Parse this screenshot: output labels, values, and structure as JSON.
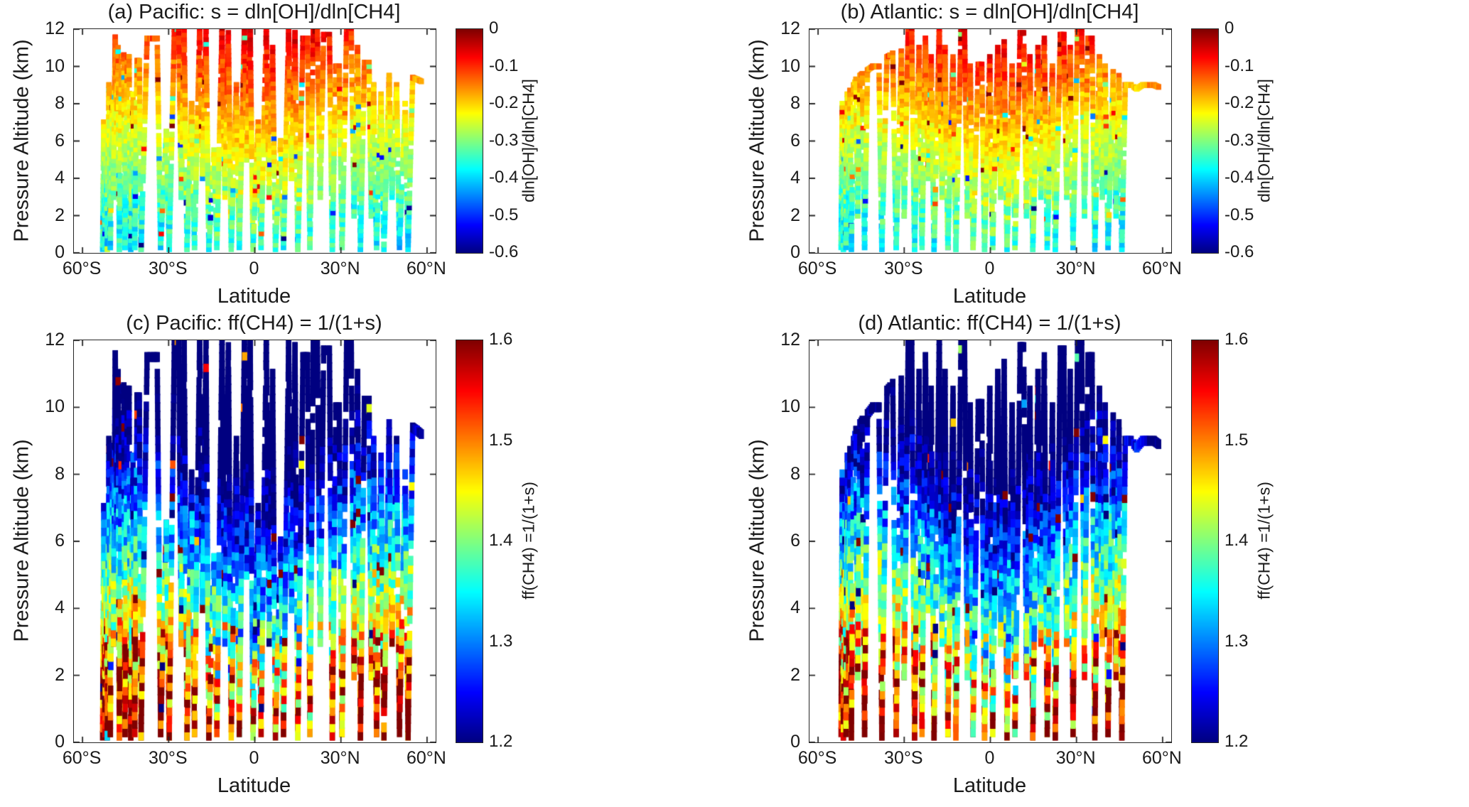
{
  "figure": {
    "background": "#ffffff",
    "text_color": "#1a1a1a",
    "axes_color": "#262626"
  },
  "chart_data": {
    "type": "heatmap",
    "panels": [
      {
        "id": "a",
        "title": "(a) Pacific:  s = dln[OH]/dln[CH4]",
        "xlabel": "Latitude",
        "ylabel": "Pressure Altitude (km)",
        "ocean": "pacific",
        "quantity": "s",
        "xlim": [
          -63,
          63
        ],
        "ylim": [
          0,
          12
        ],
        "xticks": [
          -60,
          -30,
          0,
          30,
          60
        ],
        "xtick_labels": [
          "60°S",
          "30°S",
          "0",
          "30°N",
          "60°N"
        ],
        "yticks": [
          0,
          2,
          4,
          6,
          8,
          10,
          12
        ],
        "ytick_labels": [
          "0",
          "2",
          "4",
          "6",
          "8",
          "10",
          "12"
        ],
        "colorbar": {
          "label": "dln[OH]/dln[CH4]",
          "min": -0.6,
          "max": 0,
          "colormap": "jet",
          "ticks": [
            0,
            -0.1,
            -0.2,
            -0.3,
            -0.4,
            -0.5,
            -0.6
          ],
          "tick_labels": [
            "0",
            "-0.1",
            "-0.2",
            "-0.3",
            "-0.4",
            "-0.5",
            "-0.6"
          ]
        }
      },
      {
        "id": "b",
        "title": "(b) Atlantic: s = dln[OH]/dln[CH4]",
        "xlabel": "Latitude",
        "ylabel": "Pressure Altitude (km)",
        "ocean": "atlantic",
        "quantity": "s",
        "xlim": [
          -63,
          63
        ],
        "ylim": [
          0,
          12
        ],
        "xticks": [
          -60,
          -30,
          0,
          30,
          60
        ],
        "xtick_labels": [
          "60°S",
          "30°S",
          "0",
          "30°N",
          "60°N"
        ],
        "yticks": [
          0,
          2,
          4,
          6,
          8,
          10,
          12
        ],
        "ytick_labels": [
          "0",
          "2",
          "4",
          "6",
          "8",
          "10",
          "12"
        ],
        "colorbar": {
          "label": "dln[OH]/dln[CH4]",
          "min": -0.6,
          "max": 0,
          "colormap": "jet",
          "ticks": [
            0,
            -0.1,
            -0.2,
            -0.3,
            -0.4,
            -0.5,
            -0.6
          ],
          "tick_labels": [
            "0",
            "-0.1",
            "-0.2",
            "-0.3",
            "-0.4",
            "-0.5",
            "-0.6"
          ]
        }
      },
      {
        "id": "c",
        "title": "(c) Pacific:  ff(CH4) = 1/(1+s)",
        "xlabel": "Latitude",
        "ylabel": "Pressure Altitude (km)",
        "ocean": "pacific",
        "quantity": "ff",
        "xlim": [
          -63,
          63
        ],
        "ylim": [
          0,
          12
        ],
        "xticks": [
          -60,
          -30,
          0,
          30,
          60
        ],
        "xtick_labels": [
          "60°S",
          "30°S",
          "0",
          "30°N",
          "60°N"
        ],
        "yticks": [
          0,
          2,
          4,
          6,
          8,
          10,
          12
        ],
        "ytick_labels": [
          "0",
          "2",
          "4",
          "6",
          "8",
          "10",
          "12"
        ],
        "colorbar": {
          "label": "ff(CH4) =1/(1+s)",
          "min": 1.2,
          "max": 1.6,
          "colormap": "jet",
          "ticks": [
            1.6,
            1.5,
            1.4,
            1.3,
            1.2
          ],
          "tick_labels": [
            "1.6",
            "1.5",
            "1.4",
            "1.3",
            "1.2"
          ]
        }
      },
      {
        "id": "d",
        "title": "(d) Atlantic: ff(CH4) = 1/(1+s)",
        "xlabel": "Latitude",
        "ylabel": "Pressure Altitude (km)",
        "ocean": "atlantic",
        "quantity": "ff",
        "xlim": [
          -63,
          63
        ],
        "ylim": [
          0,
          12
        ],
        "xticks": [
          -60,
          -30,
          0,
          30,
          60
        ],
        "xtick_labels": [
          "60°S",
          "30°S",
          "0",
          "30°N",
          "60°N"
        ],
        "yticks": [
          0,
          2,
          4,
          6,
          8,
          10,
          12
        ],
        "ytick_labels": [
          "0",
          "2",
          "4",
          "6",
          "8",
          "10",
          "12"
        ],
        "colorbar": {
          "label": "ff(CH4) =1/(1+s)",
          "min": 1.2,
          "max": 1.6,
          "colormap": "jet",
          "ticks": [
            1.6,
            1.5,
            1.4,
            1.3,
            1.2
          ],
          "tick_labels": [
            "1.6",
            "1.5",
            "1.4",
            "1.3",
            "1.2"
          ]
        }
      }
    ],
    "tracks": {
      "pacific": [
        [
          -53,
          0.2
        ],
        [
          -52.6,
          7
        ],
        [
          -52.2,
          0.3
        ],
        [
          -51.8,
          5
        ],
        [
          -51.4,
          0.2
        ],
        [
          -50.8,
          9
        ],
        [
          -50.3,
          0.3
        ],
        [
          -49.6,
          8.8
        ],
        [
          -49.2,
          3
        ],
        [
          -48.6,
          11.8
        ],
        [
          -48.2,
          6
        ],
        [
          -47.6,
          11
        ],
        [
          -47.2,
          0.2
        ],
        [
          -46.4,
          10.5
        ],
        [
          -45.6,
          10.6
        ],
        [
          -45.2,
          0.3
        ],
        [
          -44.4,
          10.5
        ],
        [
          -43.8,
          10.5
        ],
        [
          -43.2,
          0.2
        ],
        [
          -42.4,
          8.5
        ],
        [
          -41.8,
          0.3
        ],
        [
          -41,
          10.3
        ],
        [
          -40.2,
          10.3
        ],
        [
          -39.6,
          0.2
        ],
        [
          -37.5,
          11.5
        ],
        [
          -34,
          11.5
        ],
        [
          -32.8,
          0.3
        ],
        [
          -30.8,
          6.5
        ],
        [
          -29.8,
          0.2
        ],
        [
          -28,
          12
        ],
        [
          -26.5,
          12
        ],
        [
          -25.6,
          3
        ],
        [
          -24.6,
          11.9
        ],
        [
          -23.6,
          0.2
        ],
        [
          -22,
          8
        ],
        [
          -21,
          0.3
        ],
        [
          -19.2,
          12
        ],
        [
          -18.2,
          4
        ],
        [
          -17,
          11.9
        ],
        [
          -16,
          0.2
        ],
        [
          -14.2,
          5.5
        ],
        [
          -13.2,
          0.3
        ],
        [
          -11.4,
          12
        ],
        [
          -10.4,
          3
        ],
        [
          -9.2,
          11.8
        ],
        [
          -8.2,
          0.2
        ],
        [
          -6.4,
          9
        ],
        [
          -5.4,
          0.3
        ],
        [
          -3.6,
          12
        ],
        [
          -2.8,
          5
        ],
        [
          -1.6,
          11.9
        ],
        [
          -0.6,
          0.2
        ],
        [
          1.2,
          7
        ],
        [
          2.2,
          0.3
        ],
        [
          4,
          12
        ],
        [
          5,
          3
        ],
        [
          6.2,
          11
        ],
        [
          7.2,
          0.2
        ],
        [
          9,
          6
        ],
        [
          10,
          0.3
        ],
        [
          11.8,
          11.9
        ],
        [
          12.8,
          4
        ],
        [
          14,
          11.8
        ],
        [
          15,
          0.2
        ],
        [
          16.8,
          11.5
        ],
        [
          18.4,
          11.5
        ],
        [
          19.2,
          0.3
        ],
        [
          20.4,
          11.9
        ],
        [
          21.8,
          11.9
        ],
        [
          22.8,
          3
        ],
        [
          24,
          11.7
        ],
        [
          26,
          11.7
        ],
        [
          27,
          0.2
        ],
        [
          28.2,
          10
        ],
        [
          29.4,
          10
        ],
        [
          30.4,
          0.3
        ],
        [
          32,
          12
        ],
        [
          33.6,
          12
        ],
        [
          34.6,
          2
        ],
        [
          35.8,
          11
        ],
        [
          36.8,
          0.2
        ],
        [
          38.2,
          10.2
        ],
        [
          39.8,
          10.2
        ],
        [
          40.6,
          2
        ],
        [
          41.4,
          9
        ],
        [
          42.4,
          0.3
        ],
        [
          44,
          8.5
        ],
        [
          45,
          0.2
        ],
        [
          46.8,
          9.5
        ],
        [
          47.8,
          3
        ],
        [
          49.4,
          9
        ],
        [
          50.4,
          0.3
        ],
        [
          52.4,
          8
        ],
        [
          53.4,
          0.2
        ],
        [
          55,
          9.4
        ],
        [
          56.6,
          9.3
        ],
        [
          58,
          9.2
        ]
      ],
      "atlantic": [
        [
          -52,
          0.3
        ],
        [
          -51.6,
          8
        ],
        [
          -51.2,
          0.2
        ],
        [
          -50.7,
          7
        ],
        [
          -50.3,
          0.3
        ],
        [
          -49.8,
          8.5
        ],
        [
          -49.4,
          2
        ],
        [
          -48.9,
          8.7
        ],
        [
          -48.4,
          0.2
        ],
        [
          -47.6,
          9
        ],
        [
          -46.8,
          9.3
        ],
        [
          -46.2,
          2
        ],
        [
          -45.4,
          9.5
        ],
        [
          -44.6,
          9.6
        ],
        [
          -43.8,
          0.3
        ],
        [
          -42.8,
          9.8
        ],
        [
          -41,
          10
        ],
        [
          -38.8,
          10
        ],
        [
          -37.8,
          0.2
        ],
        [
          -36,
          10.5
        ],
        [
          -34,
          10.7
        ],
        [
          -32.8,
          0.3
        ],
        [
          -31,
          10.8
        ],
        [
          -30,
          2
        ],
        [
          -28.6,
          12
        ],
        [
          -27.4,
          12
        ],
        [
          -26.4,
          0.2
        ],
        [
          -24.8,
          11
        ],
        [
          -23.8,
          0.3
        ],
        [
          -22.6,
          11.5
        ],
        [
          -21.6,
          4
        ],
        [
          -20.6,
          10.5
        ],
        [
          -19.6,
          0.2
        ],
        [
          -17.8,
          12
        ],
        [
          -16.8,
          3
        ],
        [
          -15.8,
          11
        ],
        [
          -14.8,
          0.3
        ],
        [
          -13,
          10.5
        ],
        [
          -12,
          0.2
        ],
        [
          -10.2,
          12
        ],
        [
          -9,
          12
        ],
        [
          -8,
          2
        ],
        [
          -7,
          10
        ],
        [
          -6,
          0.3
        ],
        [
          -4.2,
          10.1
        ],
        [
          -3,
          10.1
        ],
        [
          -2,
          0.2
        ],
        [
          -0.2,
          10.5
        ],
        [
          0.8,
          0.3
        ],
        [
          2.6,
          11
        ],
        [
          3.6,
          3
        ],
        [
          4.8,
          11.3
        ],
        [
          5.8,
          0.2
        ],
        [
          7.6,
          10
        ],
        [
          8.6,
          0.3
        ],
        [
          10.4,
          11.8
        ],
        [
          11.6,
          11.8
        ],
        [
          12.6,
          2
        ],
        [
          13.8,
          10.5
        ],
        [
          14.8,
          0.2
        ],
        [
          16.6,
          11
        ],
        [
          17.6,
          3
        ],
        [
          18.8,
          11.5
        ],
        [
          19.8,
          0.3
        ],
        [
          21.6,
          10
        ],
        [
          22.6,
          0.2
        ],
        [
          24.4,
          11.7
        ],
        [
          25.6,
          11.7
        ],
        [
          26.6,
          3
        ],
        [
          27.8,
          11
        ],
        [
          28.8,
          0.3
        ],
        [
          30.4,
          12
        ],
        [
          31.8,
          12
        ],
        [
          32.8,
          2
        ],
        [
          34,
          11.5
        ],
        [
          35.4,
          11.5
        ],
        [
          36.4,
          0.2
        ],
        [
          38,
          10.5
        ],
        [
          39,
          3
        ],
        [
          40,
          10
        ],
        [
          41,
          0.3
        ],
        [
          42.8,
          9.7
        ],
        [
          43.8,
          2
        ],
        [
          44.8,
          9.5
        ],
        [
          45.8,
          0.2
        ],
        [
          47,
          9
        ],
        [
          49,
          9
        ],
        [
          51,
          8.8
        ],
        [
          53,
          9
        ],
        [
          55,
          9
        ],
        [
          57,
          9
        ],
        [
          58.6,
          8.9
        ]
      ]
    },
    "value_model": {
      "s_surface": -0.36,
      "s_top": -0.07,
      "shape": 1.15,
      "lat_wave_amp": 0.028,
      "noise_sd": 0.035,
      "low_alt_noise_factor": 1.8,
      "outlier_prob": 0.03,
      "outlier_mag": 0.2,
      "gap_prob": 0.06,
      "alt_step_km": 0.25,
      "lat_step_deg": 0.5,
      "seeds": {
        "pacific": 20417,
        "atlantic": 77013
      }
    }
  }
}
